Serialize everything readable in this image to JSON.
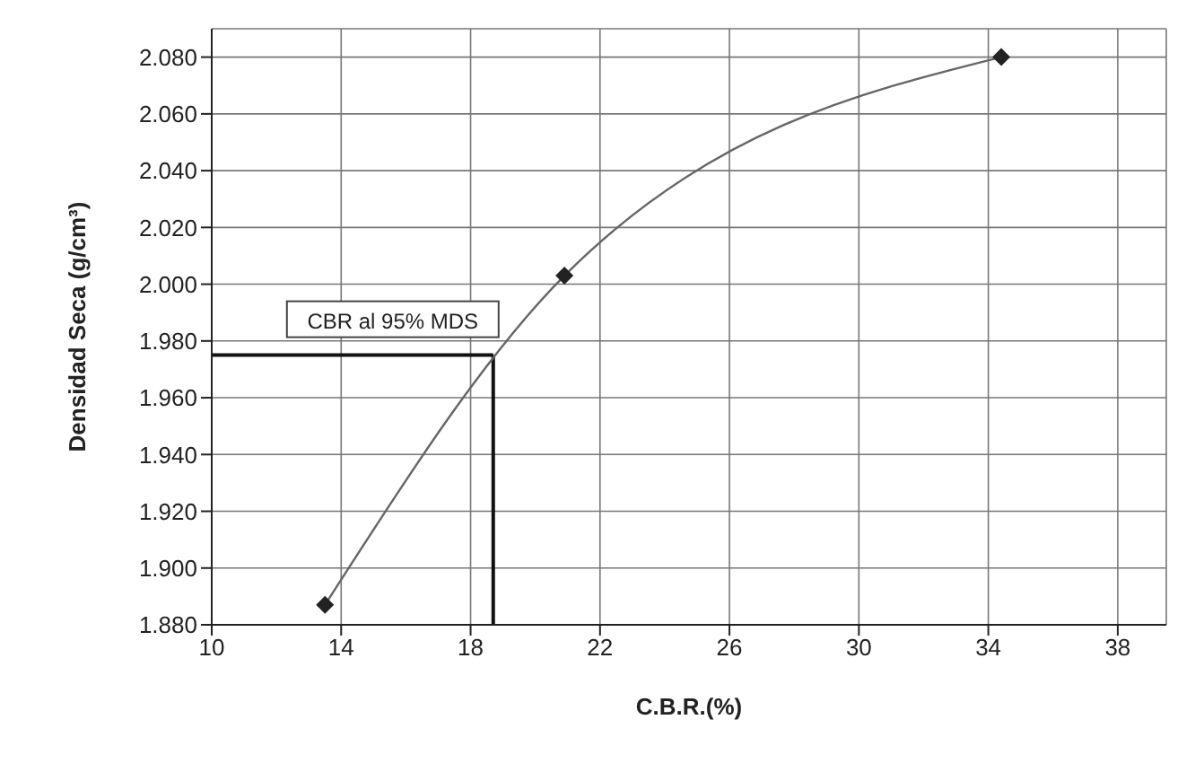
{
  "chart_data": {
    "type": "line",
    "xlabel": "C.B.R.(%)",
    "ylabel": "Densidad  Seca (g/cm³)",
    "x": [
      13.5,
      20.9,
      34.4
    ],
    "series": [
      {
        "color": "#222222",
        "values": [
          1.887,
          2.003,
          2.08
        ]
      }
    ],
    "xlim": [
      10,
      39.5
    ],
    "xticks": [
      10,
      14,
      18,
      22,
      26,
      30,
      34,
      38
    ],
    "ylim": [
      1.88,
      2.09
    ],
    "yticks": [
      {
        "value": 1.88,
        "label": "1.880"
      },
      {
        "value": 1.9,
        "label": "1.900"
      },
      {
        "value": 1.92,
        "label": "1.920"
      },
      {
        "value": 1.94,
        "label": "1.940"
      },
      {
        "value": 1.96,
        "label": "1.960"
      },
      {
        "value": 1.98,
        "label": "1.980"
      },
      {
        "value": 2.0,
        "label": "2.000"
      },
      {
        "value": 2.02,
        "label": "2.020"
      },
      {
        "value": 2.04,
        "label": "2.040"
      },
      {
        "value": 2.06,
        "label": "2.060"
      },
      {
        "value": 2.08,
        "label": "2.080"
      }
    ],
    "ref_lines": [
      {
        "axis": "y",
        "value": 1.975,
        "color": "#111111"
      },
      {
        "axis": "x",
        "value": 18.7,
        "color": "#111111"
      }
    ],
    "annotations": [
      {
        "text": "CBR al 95% MDS",
        "x": 18.7,
        "y": 1.975
      }
    ],
    "grid": true,
    "marker": "diamond",
    "line_style": "solid",
    "legend": false
  }
}
